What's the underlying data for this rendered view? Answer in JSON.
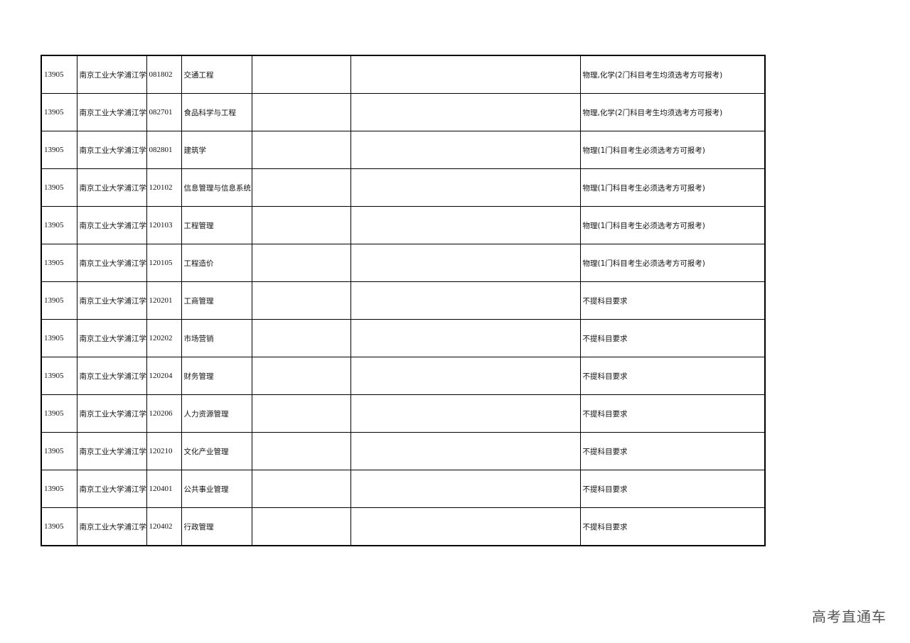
{
  "table": {
    "rows": [
      [
        "13905",
        "南京工业大学浦江学",
        "081802",
        "交通工程",
        "",
        "",
        "物理,化学(2门科目考生均须选考方可报考)"
      ],
      [
        "13905",
        "南京工业大学浦江学",
        "082701",
        "食品科学与工程",
        "",
        "",
        "物理,化学(2门科目考生均须选考方可报考)"
      ],
      [
        "13905",
        "南京工业大学浦江学",
        "082801",
        "建筑学",
        "",
        "",
        "物理(1门科目考生必须选考方可报考)"
      ],
      [
        "13905",
        "南京工业大学浦江学",
        "120102",
        "信息管理与信息系统",
        "",
        "",
        "物理(1门科目考生必须选考方可报考)"
      ],
      [
        "13905",
        "南京工业大学浦江学",
        "120103",
        "工程管理",
        "",
        "",
        "物理(1门科目考生必须选考方可报考)"
      ],
      [
        "13905",
        "南京工业大学浦江学",
        "120105",
        "工程造价",
        "",
        "",
        "物理(1门科目考生必须选考方可报考)"
      ],
      [
        "13905",
        "南京工业大学浦江学",
        "120201",
        "工商管理",
        "",
        "",
        "不提科目要求"
      ],
      [
        "13905",
        "南京工业大学浦江学",
        "120202",
        "市场营销",
        "",
        "",
        "不提科目要求"
      ],
      [
        "13905",
        "南京工业大学浦江学",
        "120204",
        "财务管理",
        "",
        "",
        "不提科目要求"
      ],
      [
        "13905",
        "南京工业大学浦江学",
        "120206",
        "人力资源管理",
        "",
        "",
        "不提科目要求"
      ],
      [
        "13905",
        "南京工业大学浦江学",
        "120210",
        "文化产业管理",
        "",
        "",
        "不提科目要求"
      ],
      [
        "13905",
        "南京工业大学浦江学",
        "120401",
        "公共事业管理",
        "",
        "",
        "不提科目要求"
      ],
      [
        "13905",
        "南京工业大学浦江学",
        "120402",
        "行政管理",
        "",
        "",
        "不提科目要求"
      ]
    ]
  },
  "watermark": "高考直通车"
}
